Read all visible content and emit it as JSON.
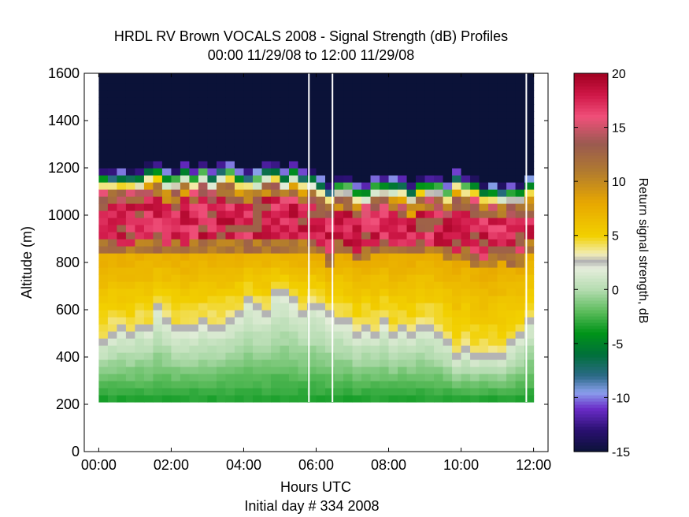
{
  "chart_data": {
    "type": "heatmap",
    "title_line1": "HRDL RV Brown VOCALS 2008 - Signal Strength (dB) Profiles",
    "title_line2": "00:00 11/29/08 to 12:00 11/29/08",
    "xlabel": "Hours UTC",
    "xlabel_secondary": "Initial day # 334  2008",
    "ylabel": "Altitude (m)",
    "colorbar_label": "Return signal strength, dB",
    "xlim": [
      -0.4,
      12.4
    ],
    "ylim": [
      0,
      1600
    ],
    "x_ticks": [
      {
        "value": 0,
        "label": "00:00"
      },
      {
        "value": 2,
        "label": "02:00"
      },
      {
        "value": 4,
        "label": "04:00"
      },
      {
        "value": 6,
        "label": "06:00"
      },
      {
        "value": 8,
        "label": "08:00"
      },
      {
        "value": 10,
        "label": "10:00"
      },
      {
        "value": 12,
        "label": "12:00"
      }
    ],
    "y_ticks": [
      {
        "value": 0,
        "label": "0"
      },
      {
        "value": 200,
        "label": "200"
      },
      {
        "value": 400,
        "label": "400"
      },
      {
        "value": 600,
        "label": "600"
      },
      {
        "value": 800,
        "label": "800"
      },
      {
        "value": 1000,
        "label": "1000"
      },
      {
        "value": 1200,
        "label": "1200"
      },
      {
        "value": 1400,
        "label": "1400"
      },
      {
        "value": 1600,
        "label": "1600"
      }
    ],
    "colorbar_range": [
      -15,
      20
    ],
    "colorbar_ticks": [
      {
        "value": 20,
        "label": "20"
      },
      {
        "value": 15,
        "label": "15"
      },
      {
        "value": 10,
        "label": "10"
      },
      {
        "value": 5,
        "label": "5"
      },
      {
        "value": 0,
        "label": "0"
      },
      {
        "value": -5,
        "label": "-5"
      },
      {
        "value": -10,
        "label": "-10"
      },
      {
        "value": -15,
        "label": "-15"
      }
    ],
    "colormap": [
      {
        "value": -15,
        "color": "#0b1238"
      },
      {
        "value": -13,
        "color": "#2a1070"
      },
      {
        "value": -11,
        "color": "#6a2cc8"
      },
      {
        "value": -9.5,
        "color": "#8aa0ec"
      },
      {
        "value": -8,
        "color": "#2c6a88"
      },
      {
        "value": -6,
        "color": "#00703a"
      },
      {
        "value": -4,
        "color": "#009418"
      },
      {
        "value": -2,
        "color": "#5cbc5c"
      },
      {
        "value": 0,
        "color": "#b4dcb0"
      },
      {
        "value": 2,
        "color": "#e6eedc"
      },
      {
        "value": 2.6,
        "color": "#b4b4b4"
      },
      {
        "value": 3.3,
        "color": "#f2eeb8"
      },
      {
        "value": 5,
        "color": "#f2d000"
      },
      {
        "value": 8,
        "color": "#e8a800"
      },
      {
        "value": 11,
        "color": "#b07a30"
      },
      {
        "value": 13.5,
        "color": "#9a5a50"
      },
      {
        "value": 16,
        "color": "#f0507a"
      },
      {
        "value": 18,
        "color": "#d01848"
      },
      {
        "value": 20,
        "color": "#a00020"
      }
    ],
    "altitude_range_data": [
      210,
      1600
    ],
    "time_step_hours": 0.25,
    "column_start_hour": 0.0,
    "data_gaps_hours": [
      5.8,
      6.45,
      11.8
    ],
    "profiles": {
      "cloud_base_m": [
        880,
        880,
        860,
        870,
        880,
        880,
        880,
        870,
        880,
        870,
        880,
        880,
        880,
        880,
        880,
        880,
        880,
        880,
        880,
        880,
        880,
        880,
        880,
        880,
        860,
        820,
        880,
        870,
        840,
        850,
        860,
        870,
        860,
        860,
        860,
        870,
        860,
        870,
        850,
        830,
        850,
        820,
        800,
        820,
        840,
        820,
        820,
        880
      ],
      "cloud_top_m": [
        1100,
        1110,
        1100,
        1110,
        1110,
        1120,
        1130,
        1110,
        1100,
        1120,
        1110,
        1130,
        1110,
        1120,
        1120,
        1100,
        1110,
        1110,
        1120,
        1130,
        1100,
        1120,
        1100,
        1110,
        1080,
        1050,
        1070,
        1080,
        1050,
        1050,
        1060,
        1060,
        1070,
        1080,
        1050,
        1060,
        1070,
        1060,
        1050,
        1090,
        1070,
        1060,
        1040,
        1040,
        1030,
        1050,
        1050,
        1080
      ],
      "gray_band_m": [
        460,
        490,
        500,
        490,
        520,
        500,
        590,
        540,
        500,
        500,
        500,
        530,
        520,
        520,
        550,
        580,
        620,
        590,
        580,
        650,
        650,
        620,
        580,
        610,
        600,
        560,
        550,
        530,
        490,
        510,
        490,
        530,
        480,
        500,
        490,
        520,
        520,
        490,
        450,
        380,
        410,
        390,
        400,
        390,
        380,
        440,
        470,
        550
      ]
    },
    "colorbar_gray_band_db": 2.6
  }
}
